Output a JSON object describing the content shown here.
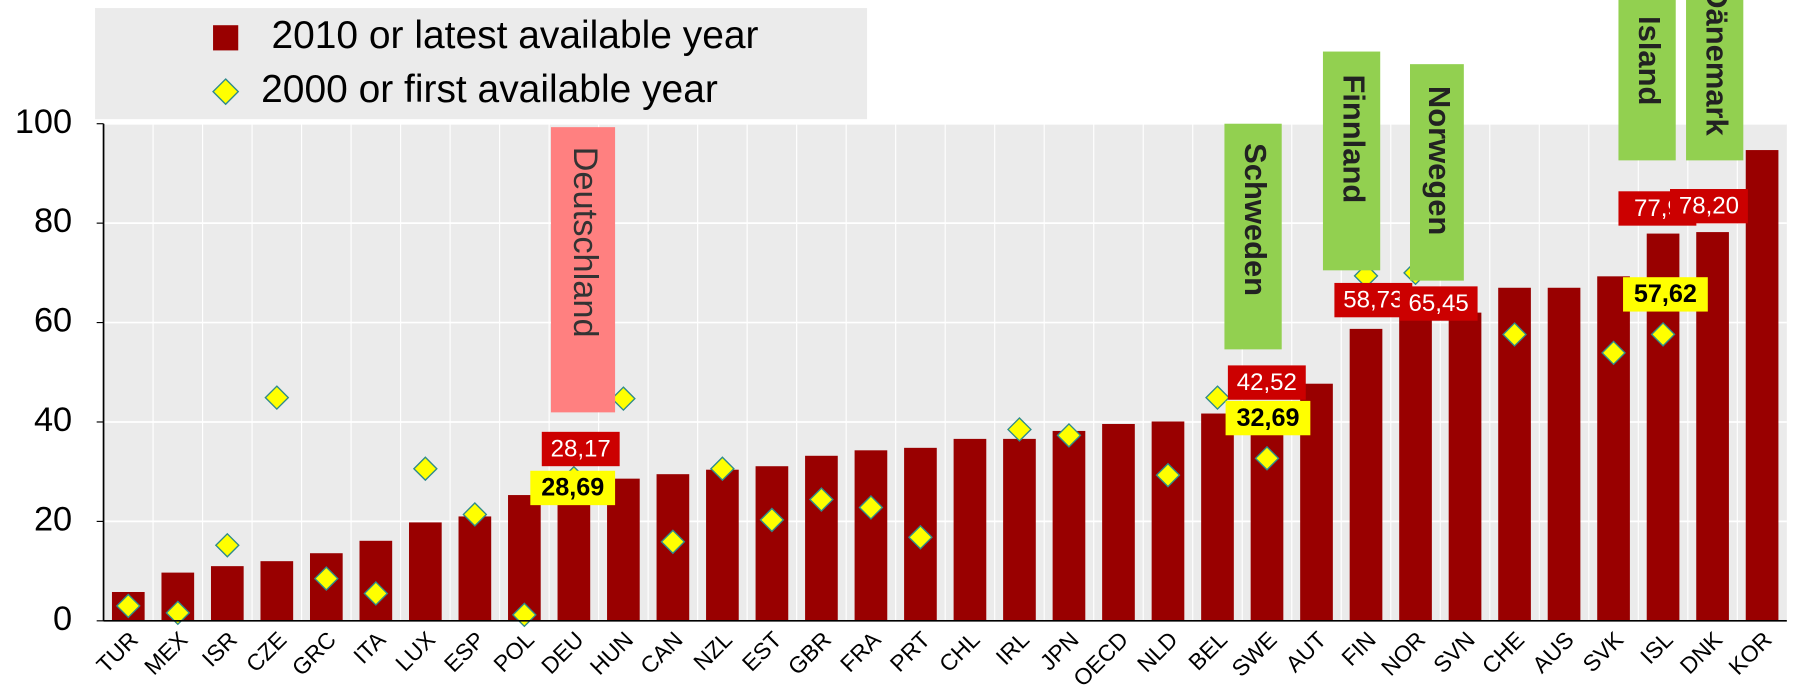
{
  "chart_data": {
    "type": "bar",
    "categories": [
      "TUR",
      "MEX",
      "ISR",
      "CZE",
      "GRC",
      "ITA",
      "LUX",
      "ESP",
      "POL",
      "DEU",
      "HUN",
      "CAN",
      "NZL",
      "EST",
      "GBR",
      "FRA",
      "PRT",
      "CHL",
      "IRL",
      "JPN",
      "OECD",
      "NLD",
      "BEL",
      "SWE",
      "AUT",
      "FIN",
      "NOR",
      "SVN",
      "CHE",
      "AUS",
      "SVK",
      "ISL",
      "DNK",
      "KOR"
    ],
    "series": [
      {
        "name": "2010 or latest available year",
        "color": "#990000",
        "marker": "bar",
        "values": [
          5.8,
          9.7,
          11,
          12,
          13.6,
          16.1,
          19.8,
          21,
          25.3,
          28.17,
          28.6,
          29.5,
          30.4,
          31.1,
          33.2,
          34.3,
          34.8,
          36.6,
          36.6,
          38.2,
          39.6,
          40.1,
          41.7,
          42.52,
          47.7,
          58.73,
          65.45,
          62,
          67,
          67,
          69.3,
          77.9,
          78.2,
          94.7
        ],
        "value_labels": [
          null,
          null,
          null,
          null,
          null,
          null,
          null,
          null,
          null,
          "28,17",
          null,
          null,
          null,
          null,
          null,
          null,
          null,
          null,
          null,
          null,
          null,
          null,
          null,
          "42,52",
          null,
          "58,73",
          "65,45",
          null,
          null,
          null,
          null,
          "77,9",
          "78,20",
          null
        ]
      },
      {
        "name": "2000 or first available year",
        "color": "#ffff00",
        "marker": "diamond",
        "values": [
          3,
          1.6,
          15.2,
          44.9,
          8.5,
          5.5,
          30.6,
          21.4,
          1.2,
          28.69,
          44.7,
          15.9,
          30.6,
          20.3,
          24.4,
          22.8,
          16.8,
          null,
          38.5,
          37.3,
          null,
          29.3,
          44.9,
          32.69,
          null,
          69.4,
          70,
          null,
          57.6,
          null,
          53.9,
          57.62,
          null,
          null
        ],
        "value_labels": [
          null,
          null,
          null,
          null,
          null,
          null,
          null,
          null,
          null,
          "28,69",
          null,
          null,
          null,
          null,
          null,
          null,
          null,
          null,
          null,
          null,
          null,
          null,
          null,
          "32,69",
          null,
          null,
          null,
          null,
          null,
          null,
          null,
          "57,62",
          null,
          null
        ]
      }
    ],
    "annotations": [
      "Deutschland",
      "Schweden",
      "Finnland",
      "Norwegen",
      "Island",
      "Dänemark"
    ],
    "ylim": [
      0,
      100
    ],
    "yticks": [
      0,
      20,
      40,
      60,
      80,
      100
    ],
    "grid": true,
    "legend": "top-left"
  }
}
